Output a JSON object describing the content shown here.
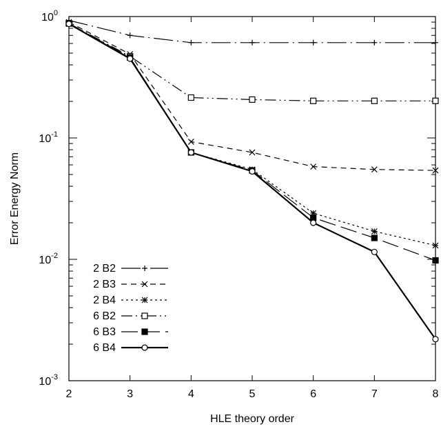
{
  "chart_data": {
    "type": "line",
    "title": "",
    "xlabel": "HLE theory order",
    "ylabel": "Error Energy Norm",
    "xlim": [
      2,
      8
    ],
    "ylim": [
      0.001,
      1
    ],
    "yscale": "log",
    "grid": false,
    "legend_position": "bottom-left",
    "x": [
      2,
      3,
      4,
      5,
      6,
      7,
      8
    ],
    "x_ticks": [
      "2",
      "3",
      "4",
      "5",
      "6",
      "7",
      "8"
    ],
    "y_ticks": [
      {
        "value": 1,
        "base": "10",
        "exp": "0"
      },
      {
        "value": 0.1,
        "base": "10",
        "exp": "-1"
      },
      {
        "value": 0.01,
        "base": "10",
        "exp": "-2"
      },
      {
        "value": 0.001,
        "base": "10",
        "exp": "-3"
      }
    ],
    "series": [
      {
        "name": "2 B2",
        "marker": "plus",
        "dash": "28,6,2,6",
        "width": 1.2,
        "values": [
          0.93,
          0.7,
          0.61,
          0.61,
          0.61,
          0.61,
          0.61
        ]
      },
      {
        "name": "2 B3",
        "marker": "cross",
        "dash": "8,6",
        "width": 1.2,
        "values": [
          0.9,
          0.49,
          0.093,
          0.076,
          0.058,
          0.055,
          0.054
        ]
      },
      {
        "name": "2 B4",
        "marker": "star",
        "dash": "3,4",
        "width": 1.2,
        "values": [
          0.87,
          0.46,
          0.076,
          0.055,
          0.024,
          0.017,
          0.013
        ]
      },
      {
        "name": "6 B2",
        "marker": "square-open",
        "dash": "16,5,2,5,2,5",
        "width": 1.2,
        "values": [
          0.88,
          0.47,
          0.215,
          0.207,
          0.202,
          0.202,
          0.202
        ]
      },
      {
        "name": "6 B3",
        "marker": "square-filled",
        "dash": "24,8",
        "width": 1.2,
        "values": [
          0.88,
          0.46,
          0.076,
          0.054,
          0.022,
          0.015,
          0.0098
        ]
      },
      {
        "name": "6 B4",
        "marker": "circle-open",
        "dash": "",
        "width": 2.2,
        "values": [
          0.87,
          0.45,
          0.076,
          0.053,
          0.02,
          0.0115,
          0.0022
        ]
      }
    ]
  }
}
